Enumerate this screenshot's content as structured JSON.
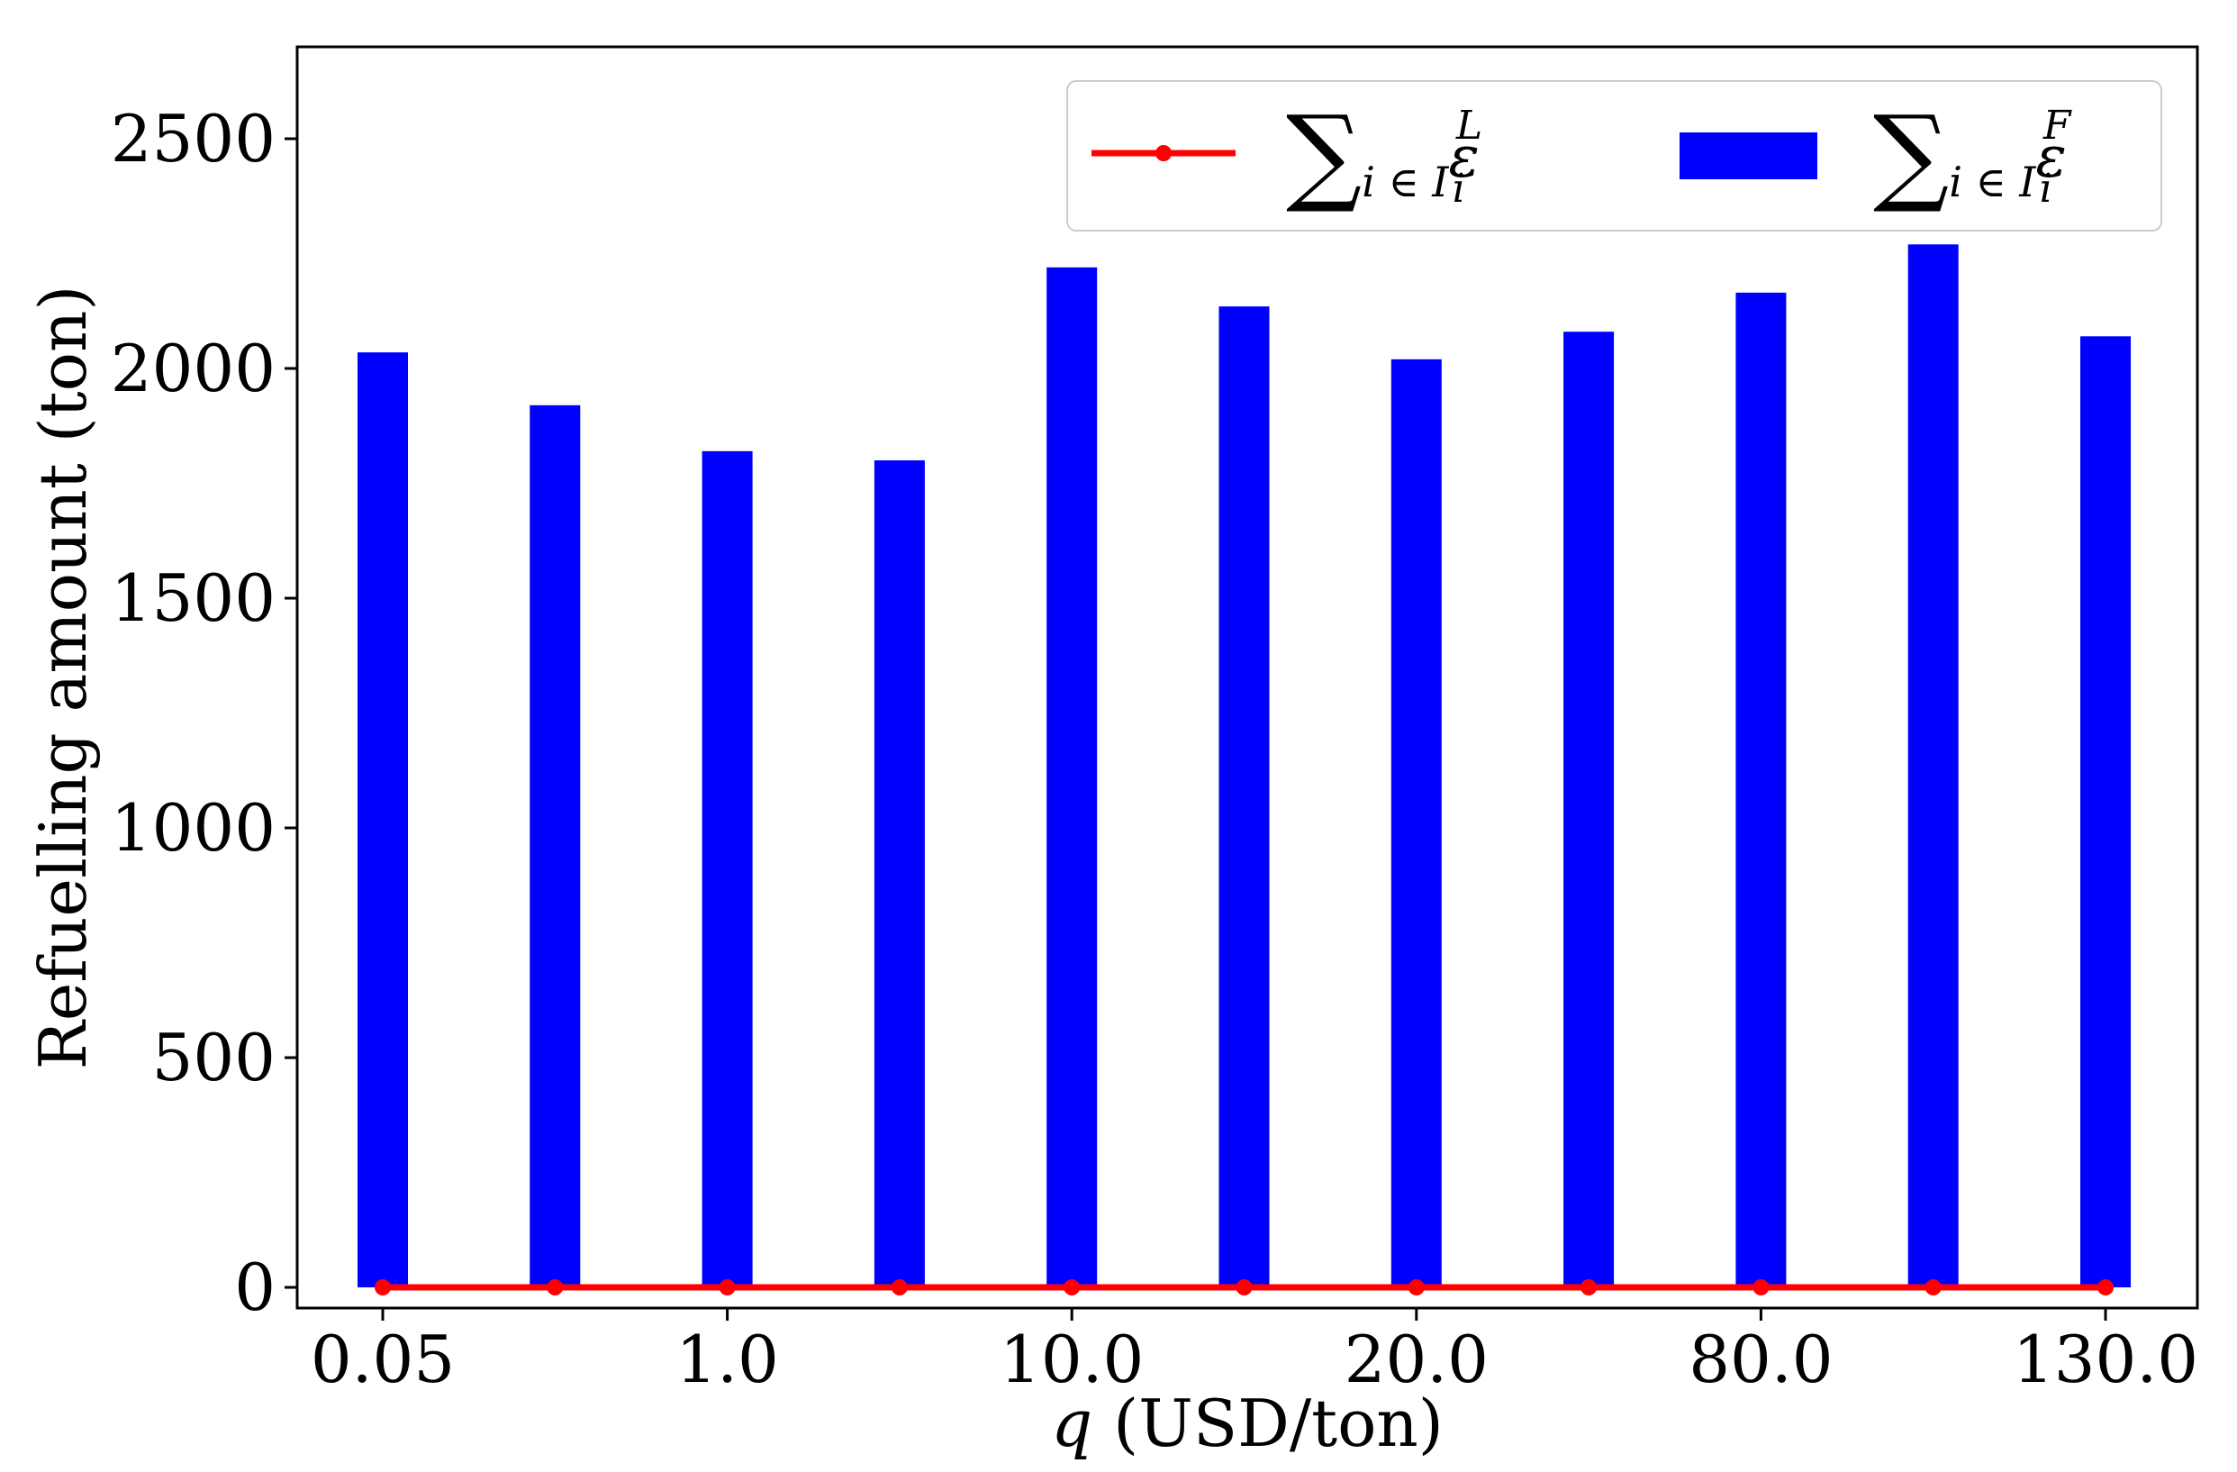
{
  "chart_data": {
    "type": "bar",
    "xlabel_var": "q",
    "xlabel_unit": " (USD/ton)",
    "ylabel": "Refuelling amount (ton)",
    "ylim": [
      -45,
      2700
    ],
    "yticks": [
      0,
      500,
      1000,
      1500,
      2000,
      2500
    ],
    "categories": [
      "0.05",
      "",
      "1.0",
      "",
      "10.0",
      "",
      "20.0",
      "",
      "80.0",
      "",
      "130.0"
    ],
    "xtick_labels": [
      "0.05",
      "1.0",
      "10.0",
      "20.0",
      "80.0",
      "130.0"
    ],
    "series": [
      {
        "kind": "line",
        "legend_sum": "∑",
        "legend_sub": "i ∈ I",
        "legend_var": "ε",
        "legend_var_sub": "i",
        "legend_var_sup": "L",
        "color": "#ff0000",
        "values": [
          0,
          0,
          0,
          0,
          0,
          0,
          0,
          0,
          0,
          0,
          0
        ]
      },
      {
        "kind": "bar",
        "legend_sum": "∑",
        "legend_sub": "i ∈ I",
        "legend_var": "ε",
        "legend_var_sub": "i",
        "legend_var_sup": "F",
        "color": "#0000ff",
        "values": [
          2035,
          1920,
          1820,
          1800,
          2220,
          2135,
          2020,
          2080,
          2165,
          2270,
          2070
        ]
      }
    ],
    "legend_position": "top-right",
    "grid": false
  }
}
